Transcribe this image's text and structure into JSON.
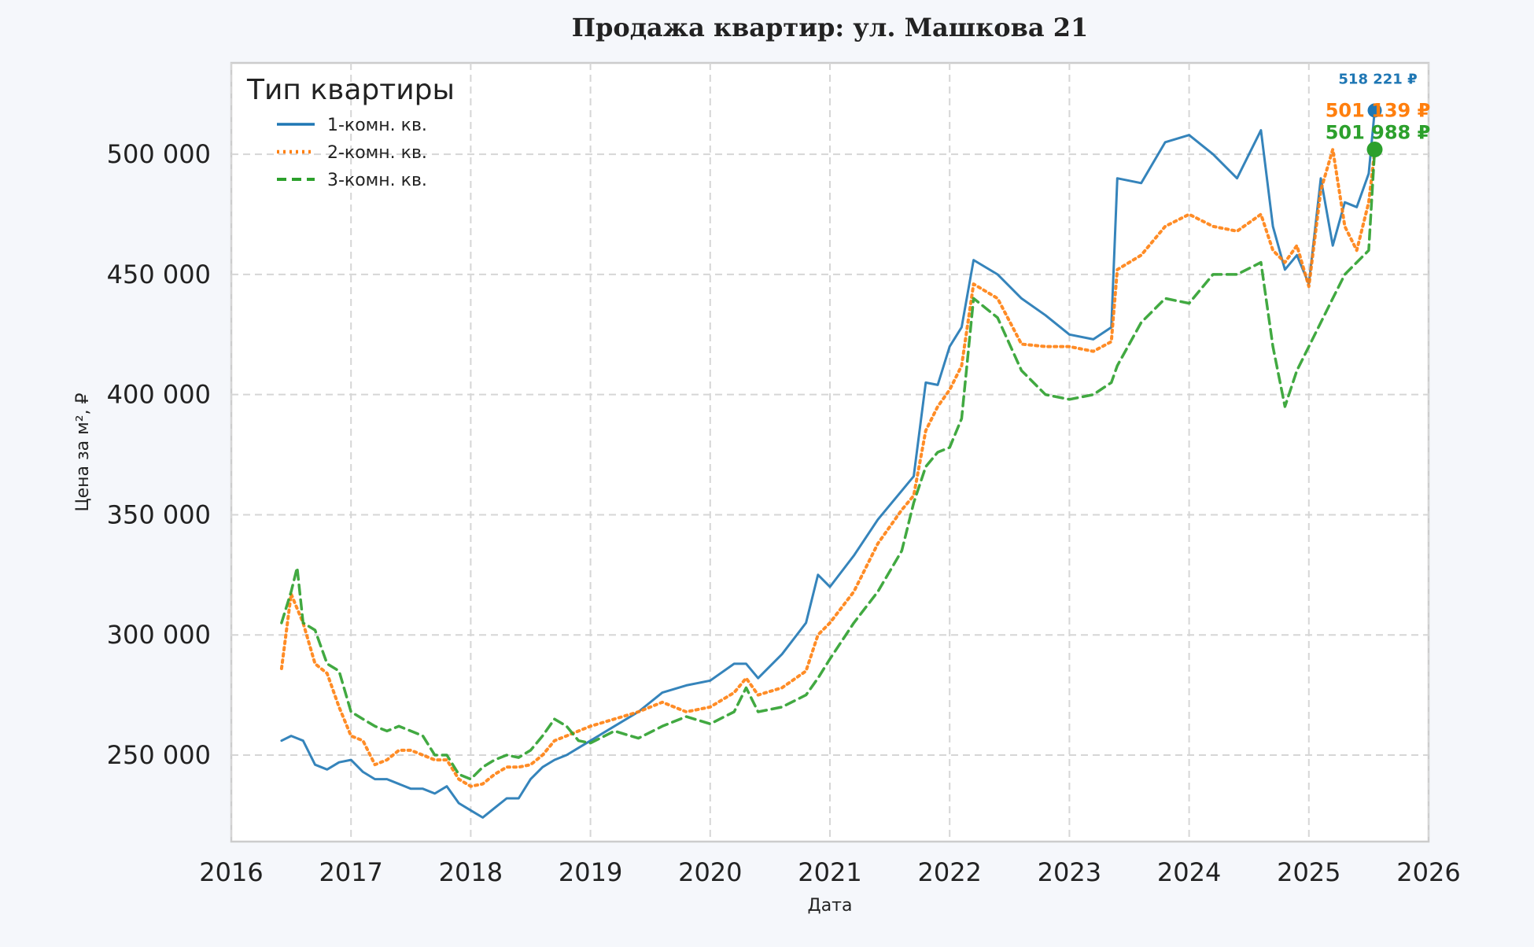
{
  "chart_data": {
    "type": "line",
    "title": "Продажа квартир: ул. Машкова 21",
    "xlabel": "Дата",
    "ylabel": "Цена за м², ₽",
    "xlim": [
      2016,
      2026
    ],
    "ylim": [
      214000,
      538000
    ],
    "x_ticks": [
      2016,
      2017,
      2018,
      2019,
      2020,
      2021,
      2022,
      2023,
      2024,
      2025,
      2026
    ],
    "y_ticks": [
      250000,
      300000,
      350000,
      400000,
      450000,
      500000
    ],
    "y_tick_labels": [
      "250 000",
      "300 000",
      "350 000",
      "400 000",
      "450 000",
      "500 000"
    ],
    "grid": true,
    "legend": {
      "title": "Тип квартиры",
      "position": "top-left"
    },
    "series": [
      {
        "name": "1-комн. кв.",
        "color": "#1f77b4",
        "style": "solid",
        "x": [
          2016.42,
          2016.5,
          2016.6,
          2016.7,
          2016.8,
          2016.9,
          2017.0,
          2017.1,
          2017.2,
          2017.3,
          2017.4,
          2017.5,
          2017.6,
          2017.7,
          2017.8,
          2017.9,
          2018.0,
          2018.1,
          2018.2,
          2018.3,
          2018.4,
          2018.5,
          2018.6,
          2018.7,
          2018.8,
          2018.9,
          2019.0,
          2019.2,
          2019.4,
          2019.6,
          2019.8,
          2020.0,
          2020.2,
          2020.3,
          2020.4,
          2020.6,
          2020.8,
          2020.9,
          2021.0,
          2021.2,
          2021.4,
          2021.6,
          2021.7,
          2021.8,
          2021.9,
          2022.0,
          2022.1,
          2022.2,
          2022.4,
          2022.6,
          2022.8,
          2023.0,
          2023.2,
          2023.35,
          2023.4,
          2023.6,
          2023.8,
          2024.0,
          2024.2,
          2024.4,
          2024.6,
          2024.7,
          2024.8,
          2024.9,
          2025.0,
          2025.1,
          2025.2,
          2025.3,
          2025.4,
          2025.5,
          2025.55
        ],
        "y": [
          256000,
          258000,
          256000,
          246000,
          244000,
          247000,
          248000,
          243000,
          240000,
          240000,
          238000,
          236000,
          236000,
          234000,
          237000,
          230000,
          227000,
          224000,
          228000,
          232000,
          232000,
          240000,
          245000,
          248000,
          250000,
          253000,
          256000,
          262000,
          268000,
          276000,
          279000,
          281000,
          288000,
          288000,
          282000,
          292000,
          305000,
          325000,
          320000,
          333000,
          348000,
          360000,
          366000,
          405000,
          404000,
          420000,
          428000,
          456000,
          450000,
          440000,
          433000,
          425000,
          423000,
          428000,
          490000,
          488000,
          505000,
          508000,
          500000,
          490000,
          510000,
          470000,
          452000,
          458000,
          446000,
          490000,
          462000,
          480000,
          478000,
          492000,
          518221
        ]
      },
      {
        "name": "2-комн. кв.",
        "color": "#ff7f0e",
        "style": "dotted",
        "x": [
          2016.42,
          2016.5,
          2016.6,
          2016.7,
          2016.8,
          2016.9,
          2017.0,
          2017.1,
          2017.2,
          2017.3,
          2017.4,
          2017.5,
          2017.6,
          2017.7,
          2017.8,
          2017.9,
          2018.0,
          2018.1,
          2018.2,
          2018.3,
          2018.4,
          2018.5,
          2018.6,
          2018.7,
          2018.8,
          2018.9,
          2019.0,
          2019.2,
          2019.4,
          2019.6,
          2019.8,
          2020.0,
          2020.2,
          2020.3,
          2020.4,
          2020.6,
          2020.8,
          2020.9,
          2021.0,
          2021.2,
          2021.4,
          2021.6,
          2021.7,
          2021.8,
          2021.9,
          2022.0,
          2022.1,
          2022.2,
          2022.4,
          2022.6,
          2022.8,
          2023.0,
          2023.2,
          2023.35,
          2023.4,
          2023.6,
          2023.8,
          2024.0,
          2024.2,
          2024.4,
          2024.6,
          2024.7,
          2024.8,
          2024.9,
          2025.0,
          2025.1,
          2025.2,
          2025.3,
          2025.4,
          2025.5,
          2025.55
        ],
        "y": [
          286000,
          317000,
          305000,
          288000,
          284000,
          270000,
          258000,
          256000,
          246000,
          248000,
          252000,
          252000,
          250000,
          248000,
          248000,
          240000,
          237000,
          238000,
          242000,
          245000,
          245000,
          246000,
          250000,
          256000,
          258000,
          260000,
          262000,
          265000,
          268000,
          272000,
          268000,
          270000,
          276000,
          282000,
          275000,
          278000,
          285000,
          300000,
          305000,
          318000,
          338000,
          352000,
          358000,
          385000,
          395000,
          402000,
          412000,
          446000,
          440000,
          421000,
          420000,
          420000,
          418000,
          422000,
          452000,
          458000,
          470000,
          475000,
          470000,
          468000,
          475000,
          460000,
          455000,
          462000,
          445000,
          485000,
          502000,
          470000,
          460000,
          480000,
          501139
        ]
      },
      {
        "name": "3-комн. кв.",
        "color": "#2ca02c",
        "style": "dashed",
        "x": [
          2016.42,
          2016.5,
          2016.55,
          2016.6,
          2016.7,
          2016.8,
          2016.9,
          2017.0,
          2017.1,
          2017.2,
          2017.3,
          2017.4,
          2017.5,
          2017.6,
          2017.7,
          2017.8,
          2017.9,
          2018.0,
          2018.1,
          2018.2,
          2018.3,
          2018.4,
          2018.5,
          2018.6,
          2018.7,
          2018.8,
          2018.9,
          2019.0,
          2019.2,
          2019.4,
          2019.6,
          2019.8,
          2020.0,
          2020.2,
          2020.3,
          2020.4,
          2020.6,
          2020.8,
          2020.9,
          2021.0,
          2021.2,
          2021.4,
          2021.6,
          2021.7,
          2021.8,
          2021.9,
          2022.0,
          2022.1,
          2022.2,
          2022.4,
          2022.6,
          2022.8,
          2023.0,
          2023.2,
          2023.35,
          2023.4,
          2023.6,
          2023.8,
          2024.0,
          2024.2,
          2024.4,
          2024.6,
          2024.7,
          2024.8,
          2024.9,
          2025.0,
          2025.1,
          2025.2,
          2025.3,
          2025.4,
          2025.5,
          2025.55
        ],
        "y": [
          305000,
          318000,
          328000,
          305000,
          302000,
          288000,
          285000,
          268000,
          265000,
          262000,
          260000,
          262000,
          260000,
          258000,
          250000,
          250000,
          242000,
          240000,
          245000,
          248000,
          250000,
          249000,
          252000,
          258000,
          265000,
          262000,
          256000,
          255000,
          260000,
          257000,
          262000,
          266000,
          263000,
          268000,
          278000,
          268000,
          270000,
          275000,
          282000,
          290000,
          305000,
          318000,
          335000,
          355000,
          370000,
          376000,
          378000,
          390000,
          440000,
          432000,
          410000,
          400000,
          398000,
          400000,
          405000,
          412000,
          430000,
          440000,
          438000,
          450000,
          450000,
          455000,
          420000,
          395000,
          410000,
          420000,
          430000,
          440000,
          450000,
          455000,
          460000,
          501988
        ]
      }
    ],
    "end_labels": [
      {
        "series": "1-комн. кв.",
        "text": "518 221 ₽",
        "value": 518221
      },
      {
        "series": "2-комн. кв.",
        "text": "501 139 ₽",
        "value": 501139
      },
      {
        "series": "3-комн. кв.",
        "text": "501 988 ₽",
        "value": 501988
      }
    ]
  }
}
